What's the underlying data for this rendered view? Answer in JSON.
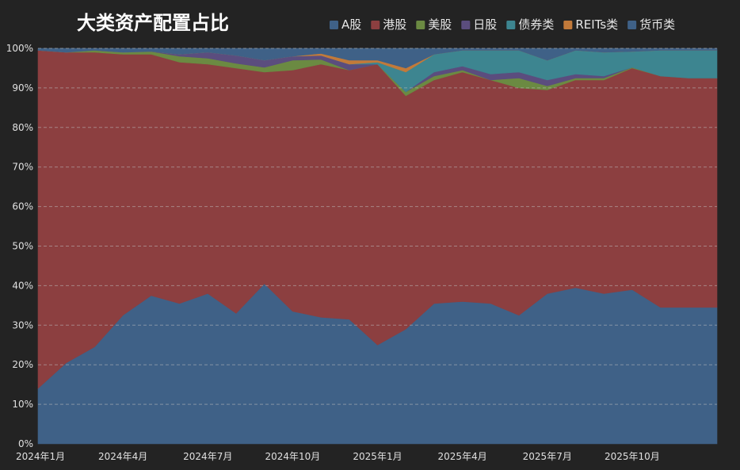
{
  "chart_data": {
    "type": "area",
    "title": "大类资产配置占比",
    "stacked": true,
    "percent": true,
    "ylim": [
      0,
      100
    ],
    "yticks": [
      "0%",
      "10%",
      "20%",
      "30%",
      "40%",
      "50%",
      "60%",
      "70%",
      "80%",
      "90%",
      "100%"
    ],
    "xtick_labels": [
      {
        "index": 0,
        "label": "2024年1月"
      },
      {
        "index": 3,
        "label": "2024年4月"
      },
      {
        "index": 6,
        "label": "2024年7月"
      },
      {
        "index": 9,
        "label": "2024年10月"
      },
      {
        "index": 12,
        "label": "2025年1月"
      },
      {
        "index": 15,
        "label": "2025年4月"
      },
      {
        "index": 18,
        "label": "2025年7月"
      },
      {
        "index": 21,
        "label": "2025年10月"
      }
    ],
    "x": [
      "2024-01",
      "2024-01",
      "2024-02",
      "2024-03",
      "2024-04",
      "2024-05",
      "2024-06",
      "2024-07",
      "2024-08",
      "2024-09",
      "2024-10",
      "2024-11",
      "2024-12",
      "2025-01",
      "2025-01",
      "2025-02",
      "2025-03",
      "2025-04",
      "2025-05",
      "2025-06",
      "2025-07",
      "2025-08",
      "2025-09",
      "2025-10",
      "2025-11"
    ],
    "legend": {
      "position": "top-right"
    },
    "series": [
      {
        "name": "A股",
        "color": "#3f6187",
        "values": [
          14.0,
          20.5,
          24.5,
          32.5,
          37.5,
          35.5,
          38.0,
          33.0,
          40.5,
          33.5,
          32.0,
          31.5,
          25.0,
          29.0,
          35.5,
          36.0,
          35.5,
          32.5,
          38.0,
          39.5,
          38.0,
          39.0,
          34.5,
          34.5,
          34.5
        ]
      },
      {
        "name": "港股",
        "color": "#8c3f40",
        "values": [
          85.5,
          78.5,
          74.5,
          66.0,
          61.0,
          61.0,
          58.0,
          62.0,
          53.5,
          61.0,
          64.0,
          63.0,
          71.0,
          59.0,
          56.5,
          58.0,
          56.5,
          57.5,
          51.5,
          52.5,
          54.0,
          56.0,
          58.5,
          58.0,
          58.0
        ]
      },
      {
        "name": "美股",
        "color": "#6b8a42",
        "values": [
          0.0,
          0.0,
          0.5,
          0.5,
          0.7,
          1.5,
          1.5,
          1.2,
          1.2,
          2.5,
          1.2,
          0.0,
          0.0,
          1.0,
          1.0,
          0.5,
          0.0,
          2.5,
          1.0,
          0.5,
          0.5,
          0.2,
          0.0,
          0.0,
          0.0
        ]
      },
      {
        "name": "日股",
        "color": "#5b4d7e",
        "values": [
          0.0,
          0.0,
          0.0,
          0.0,
          0.0,
          0.5,
          1.5,
          2.0,
          1.8,
          1.0,
          1.0,
          1.5,
          0.0,
          0.0,
          1.0,
          1.0,
          1.5,
          1.5,
          1.5,
          1.0,
          0.5,
          0.0,
          0.0,
          0.0,
          0.0
        ]
      },
      {
        "name": "债券类",
        "color": "#3d8590",
        "values": [
          0.0,
          0.0,
          0.0,
          0.0,
          0.0,
          0.0,
          0.0,
          0.0,
          0.0,
          0.0,
          0.0,
          0.0,
          0.5,
          5.0,
          4.5,
          4.0,
          6.0,
          5.5,
          5.0,
          6.0,
          6.0,
          4.0,
          6.5,
          7.0,
          7.0
        ]
      },
      {
        "name": "REITs类",
        "color": "#c27a3a",
        "values": [
          0.0,
          0.0,
          0.0,
          0.0,
          0.0,
          0.0,
          0.0,
          0.0,
          0.0,
          0.0,
          0.5,
          1.0,
          0.5,
          1.0,
          0.0,
          0.0,
          0.0,
          0.0,
          0.0,
          0.0,
          0.0,
          0.0,
          0.0,
          0.0,
          0.0
        ]
      },
      {
        "name": "货币类",
        "color": "#3f6187",
        "values": [
          0.5,
          1.0,
          0.5,
          1.0,
          0.8,
          1.5,
          1.0,
          1.8,
          3.0,
          2.0,
          1.3,
          3.0,
          3.0,
          5.0,
          1.5,
          0.5,
          0.5,
          0.5,
          3.0,
          0.5,
          1.0,
          0.8,
          0.5,
          0.5,
          0.5
        ]
      }
    ]
  }
}
